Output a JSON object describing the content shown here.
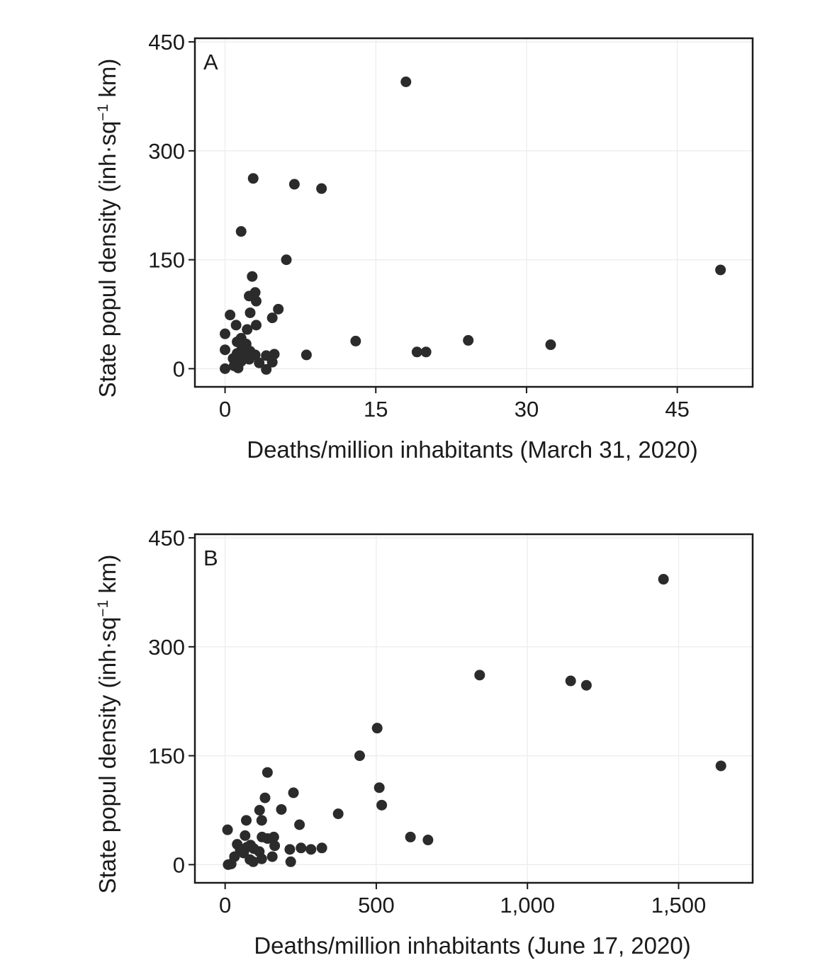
{
  "chart_data": [
    {
      "type": "scatter",
      "panel_label": "A",
      "xlabel": "Deaths/million inhabitants (March 31, 2020)",
      "ylabel": "State popul density (inh·sq",
      "ylabel_sup": "−1",
      "ylabel_end": " km)",
      "xlim": [
        -3,
        52.5
      ],
      "ylim": [
        -25,
        455
      ],
      "xticks": [
        0,
        15,
        30,
        45
      ],
      "xtick_labels": [
        "0",
        "15",
        "30",
        "45"
      ],
      "yticks": [
        0,
        150,
        300,
        450
      ],
      "ytick_labels": [
        "0",
        "150",
        "300",
        "450"
      ],
      "grid": true,
      "points": [
        [
          18.0,
          395
        ],
        [
          2.8,
          262
        ],
        [
          6.9,
          254
        ],
        [
          9.6,
          248
        ],
        [
          1.6,
          189
        ],
        [
          6.1,
          150
        ],
        [
          49.3,
          136
        ],
        [
          2.7,
          127
        ],
        [
          3.0,
          105
        ],
        [
          2.4,
          100
        ],
        [
          3.1,
          93
        ],
        [
          5.3,
          82
        ],
        [
          2.5,
          77
        ],
        [
          0.5,
          74
        ],
        [
          4.7,
          70
        ],
        [
          1.1,
          60
        ],
        [
          3.1,
          60
        ],
        [
          2.2,
          54
        ],
        [
          0.0,
          48
        ],
        [
          1.6,
          42
        ],
        [
          24.2,
          39
        ],
        [
          1.2,
          37
        ],
        [
          13.0,
          38
        ],
        [
          2.1,
          34
        ],
        [
          32.4,
          33
        ],
        [
          0.0,
          26
        ],
        [
          2.0,
          27
        ],
        [
          1.6,
          25
        ],
        [
          2.5,
          24
        ],
        [
          19.1,
          23
        ],
        [
          20.0,
          23
        ],
        [
          1.2,
          21
        ],
        [
          4.9,
          20
        ],
        [
          8.1,
          19
        ],
        [
          3.0,
          19
        ],
        [
          4.1,
          18
        ],
        [
          1.9,
          16
        ],
        [
          0.8,
          14
        ],
        [
          2.4,
          13
        ],
        [
          1.6,
          10
        ],
        [
          3.4,
          8
        ],
        [
          4.7,
          9
        ],
        [
          0.9,
          4
        ],
        [
          1.3,
          1
        ],
        [
          0.0,
          0
        ],
        [
          4.1,
          -1
        ]
      ]
    },
    {
      "type": "scatter",
      "panel_label": "B",
      "xlabel": "Deaths/million inhabitants (June 17, 2020)",
      "ylabel": "State popul density (inh·sq",
      "ylabel_sup": "−1",
      "ylabel_end": " km)",
      "xlim": [
        -100,
        1745
      ],
      "ylim": [
        -25,
        455
      ],
      "xticks": [
        0,
        500,
        1000,
        1500
      ],
      "xtick_labels": [
        "0",
        "500",
        "1,000",
        "1,500"
      ],
      "yticks": [
        0,
        150,
        300,
        450
      ],
      "ytick_labels": [
        "0",
        "150",
        "300",
        "450"
      ],
      "grid": true,
      "points": [
        [
          1450,
          393
        ],
        [
          842,
          261
        ],
        [
          1143,
          253
        ],
        [
          1195,
          247
        ],
        [
          503,
          188
        ],
        [
          445,
          150
        ],
        [
          1640,
          136
        ],
        [
          140,
          127
        ],
        [
          510,
          106
        ],
        [
          226,
          99
        ],
        [
          132,
          92
        ],
        [
          518,
          82
        ],
        [
          186,
          76
        ],
        [
          114,
          75
        ],
        [
          374,
          70
        ],
        [
          70,
          61
        ],
        [
          121,
          61
        ],
        [
          246,
          55
        ],
        [
          8,
          48
        ],
        [
          66,
          40
        ],
        [
          613,
          38
        ],
        [
          161,
          38
        ],
        [
          122,
          38
        ],
        [
          671,
          34
        ],
        [
          140,
          36
        ],
        [
          84,
          27
        ],
        [
          40,
          28
        ],
        [
          164,
          26
        ],
        [
          72,
          24
        ],
        [
          320,
          23
        ],
        [
          251,
          23
        ],
        [
          95,
          22
        ],
        [
          214,
          21
        ],
        [
          284,
          21
        ],
        [
          50,
          20
        ],
        [
          113,
          18
        ],
        [
          61,
          16
        ],
        [
          31,
          11
        ],
        [
          156,
          11
        ],
        [
          121,
          8
        ],
        [
          82,
          7
        ],
        [
          93,
          4
        ],
        [
          217,
          4
        ],
        [
          20,
          1
        ],
        [
          10,
          0
        ]
      ]
    }
  ]
}
